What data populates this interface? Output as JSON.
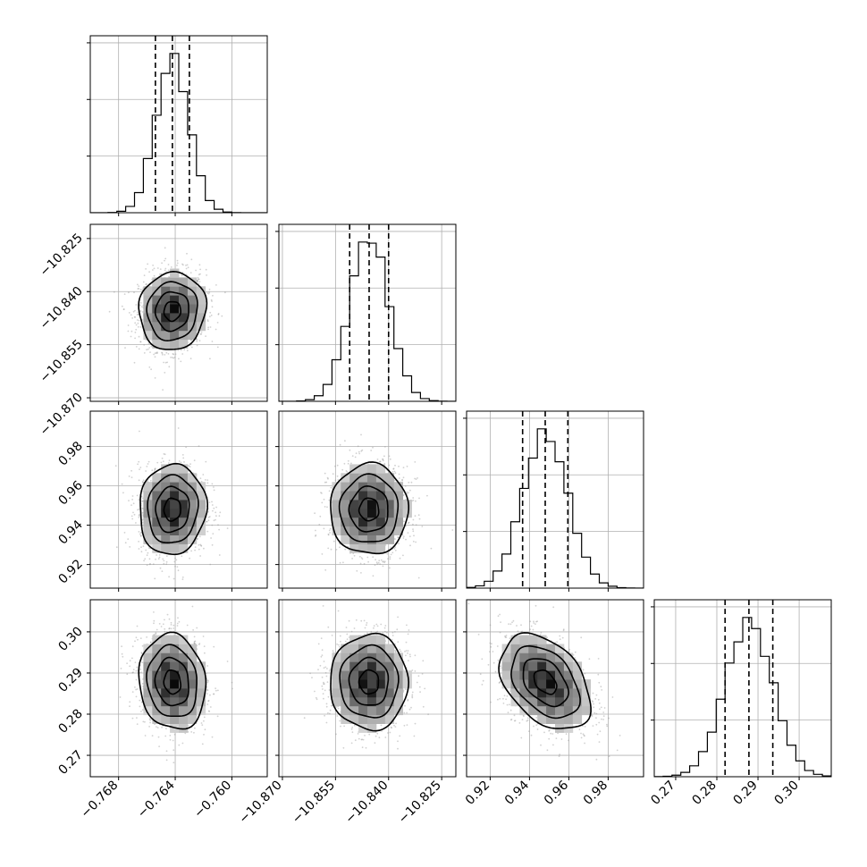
{
  "chart_data": {
    "type": "corner",
    "parameters": [
      {
        "mean": -0.7642,
        "sd": 0.00118,
        "range": [
          -0.77,
          -0.7575
        ],
        "ticks": [
          -0.768,
          -0.764,
          -0.76
        ],
        "tick_labels": [
          "−0.768",
          "−0.764",
          "−0.760"
        ],
        "quantiles": [
          -0.7654,
          -0.7642,
          -0.763
        ]
      },
      {
        "mean": -10.8455,
        "sd": 0.0055,
        "range": [
          -10.871,
          -10.821
        ],
        "ticks": [
          -10.87,
          -10.855,
          -10.84,
          -10.825
        ],
        "tick_labels": [
          "−10.870",
          "−10.855",
          "−10.840",
          "−10.825"
        ],
        "quantiles": [
          -10.851,
          -10.8455,
          -10.84
        ]
      },
      {
        "mean": 0.948,
        "sd": 0.0115,
        "range": [
          0.908,
          0.998
        ],
        "ticks": [
          0.92,
          0.94,
          0.96,
          0.98
        ],
        "tick_labels": [
          "0.92",
          "0.94",
          "0.96",
          "0.98"
        ],
        "quantiles": [
          0.9365,
          0.948,
          0.9595
        ]
      },
      {
        "mean": 0.2878,
        "sd": 0.0058,
        "range": [
          0.2648,
          0.3078
        ],
        "ticks": [
          0.27,
          0.28,
          0.29,
          0.3
        ],
        "tick_labels": [
          "0.27",
          "0.28",
          "0.29",
          "0.30"
        ],
        "quantiles": [
          0.282,
          0.2878,
          0.2936
        ]
      }
    ],
    "correlations": {
      "0-1": 0.05,
      "0-2": 0.05,
      "0-3": -0.1,
      "1-2": 0.0,
      "1-3": 0.0,
      "2-3": -0.4
    },
    "histogram_bins": 20,
    "contour_levels_sigma": [
      0.5,
      1.0,
      1.5,
      2.0
    ],
    "grid": true,
    "colors": {
      "line": "#000000",
      "grid": "#b0b0b0",
      "scatter": "#9a9a9a"
    }
  }
}
